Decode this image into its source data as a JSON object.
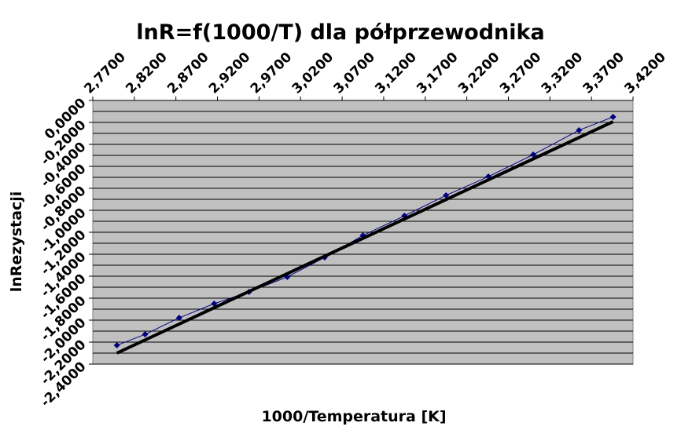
{
  "chart_data": {
    "type": "scatter",
    "title": "lnR=f(1000/T) dla półprzewodnika",
    "x_label": "1000/Temperatura [K]",
    "y_label": "lnRezystacji",
    "xlim": [
      2.77,
      3.42
    ],
    "xticks": [
      {
        "value": 2.77,
        "label": "2,7700"
      },
      {
        "value": 2.82,
        "label": "2,8200"
      },
      {
        "value": 2.87,
        "label": "2,8700"
      },
      {
        "value": 2.92,
        "label": "2,9200"
      },
      {
        "value": 2.97,
        "label": "2,9700"
      },
      {
        "value": 3.02,
        "label": "3,0200"
      },
      {
        "value": 3.07,
        "label": "3,0700"
      },
      {
        "value": 3.12,
        "label": "3,1200"
      },
      {
        "value": 3.17,
        "label": "3,1700"
      },
      {
        "value": 3.22,
        "label": "3,2200"
      },
      {
        "value": 3.27,
        "label": "3,2700"
      },
      {
        "value": 3.32,
        "label": "3,3200"
      },
      {
        "value": 3.37,
        "label": "3,3700"
      },
      {
        "value": 3.42,
        "label": "3,4200"
      }
    ],
    "ylim": [
      -2.4,
      0
    ],
    "yticks": [
      {
        "value": 0,
        "label": "0,0000"
      },
      {
        "value": -0.2,
        "label": "-0,2000"
      },
      {
        "value": -0.4,
        "label": "-0,4000"
      },
      {
        "value": -0.6,
        "label": "-0,6000"
      },
      {
        "value": -0.8,
        "label": "-0,8000"
      },
      {
        "value": -1,
        "label": "-1,0000"
      },
      {
        "value": -1.2,
        "label": "-1,2000"
      },
      {
        "value": -1.4,
        "label": "-1,4000"
      },
      {
        "value": -1.6,
        "label": "-1,6000"
      },
      {
        "value": -1.8,
        "label": "-1,8000"
      },
      {
        "value": -2,
        "label": "-2,0000"
      },
      {
        "value": -2.2,
        "label": "-2,2000"
      },
      {
        "value": -2.4,
        "label": "-2,4000"
      }
    ],
    "grid": true,
    "minor_grid": true,
    "background": "#c0c0c0",
    "series": [
      {
        "color": "#000080",
        "x": [
          2.799,
          2.833,
          2.874,
          2.916,
          2.958,
          3.004,
          3.049,
          3.095,
          3.145,
          3.195,
          3.246,
          3.3,
          3.355,
          3.396
        ],
        "values": [
          -2.229,
          -2.129,
          -1.979,
          -1.85,
          -1.743,
          -1.607,
          -1.429,
          -1.229,
          -1.05,
          -0.864,
          -0.693,
          -0.493,
          -0.271,
          -0.15
        ],
        "markers": true
      },
      {
        "color": "#000000",
        "x": [
          2.799,
          3.396
        ],
        "values": [
          -2.3,
          -0.193
        ],
        "markers": false
      }
    ]
  }
}
